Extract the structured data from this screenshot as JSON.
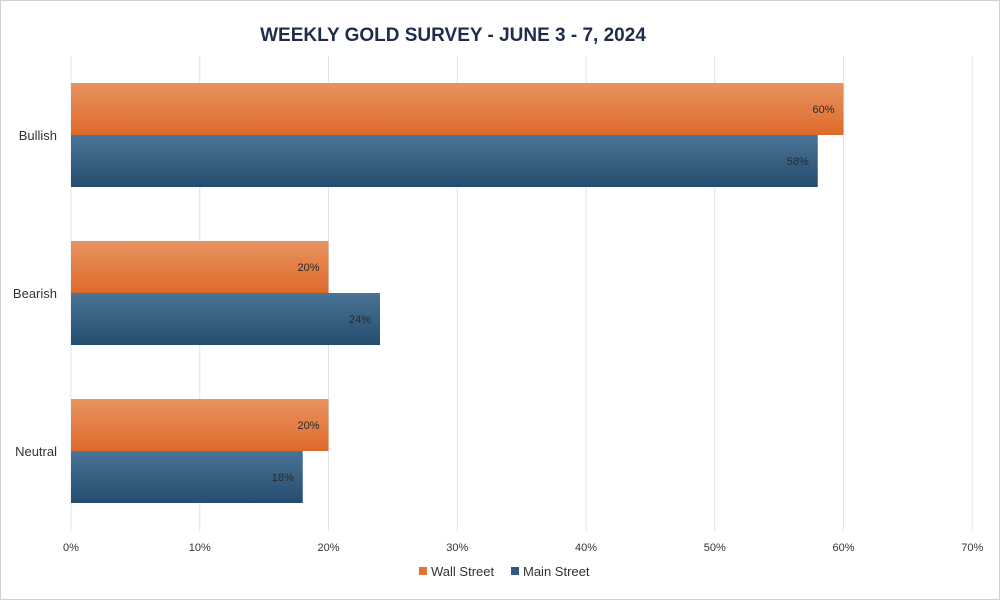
{
  "chart_data": {
    "type": "bar",
    "orientation": "horizontal",
    "title": "WEEKLY GOLD SURVEY - JUNE 3 - 7, 2024",
    "categories": [
      "Bullish",
      "Bearish",
      "Neutral"
    ],
    "series": [
      {
        "name": "Wall Street",
        "values": [
          60,
          20,
          20
        ],
        "labels": [
          "60%",
          "20%",
          "20%"
        ],
        "color": "#e0733a"
      },
      {
        "name": "Main Street",
        "values": [
          58,
          24,
          18
        ],
        "labels": [
          "58%",
          "24%",
          "18%"
        ],
        "color": "#2f5a7d"
      }
    ],
    "xlim": [
      0,
      70
    ],
    "xticks": [
      {
        "value": 0,
        "label": "0%"
      },
      {
        "value": 10,
        "label": "10%"
      },
      {
        "value": 20,
        "label": "20%"
      },
      {
        "value": 30,
        "label": "30%"
      },
      {
        "value": 40,
        "label": "40%"
      },
      {
        "value": 50,
        "label": "50%"
      },
      {
        "value": 60,
        "label": "60%"
      },
      {
        "value": 70,
        "label": "70%"
      }
    ],
    "grid": true,
    "legend": "bottom"
  }
}
